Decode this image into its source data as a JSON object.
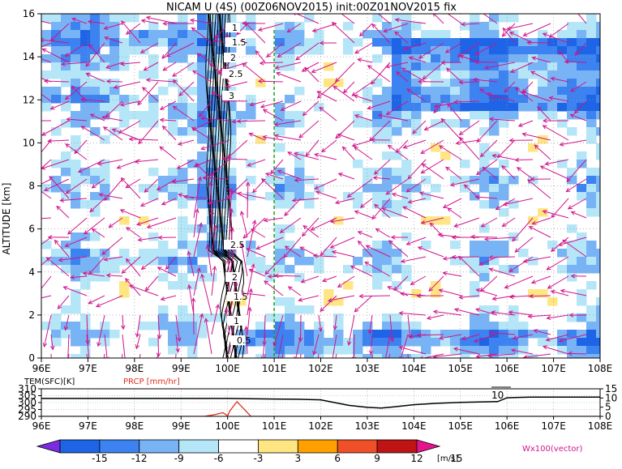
{
  "title": "NICAM U (4S) (00Z06NOV2015) init:00Z01NOV2015 fix",
  "chart_data": [
    {
      "type": "heatmap",
      "ylabel": "ALTITUDE [km]",
      "xlabel": "",
      "xlim": [
        96,
        108
      ],
      "ylim": [
        0,
        16
      ],
      "x_ticks": [
        "96E",
        "97E",
        "98E",
        "99E",
        "100E",
        "101E",
        "102E",
        "103E",
        "104E",
        "105E",
        "106E",
        "107E",
        "108E"
      ],
      "y_ticks": [
        "0",
        "2",
        "4",
        "6",
        "8",
        "10",
        "12",
        "14",
        "16"
      ],
      "grid": true,
      "reference_line_x": 101,
      "contour_labels": [
        "1",
        "1.5",
        "2",
        "2.5",
        "3",
        "2.5",
        "2",
        "1.5",
        "1",
        "0.5"
      ],
      "legend_placement": "bottom",
      "colorbar": {
        "unit": "[m/s]",
        "ticks": [
          "-15",
          "-12",
          "-9",
          "-6",
          "-3",
          "3",
          "6",
          "9",
          "12",
          "15"
        ],
        "colors": [
          "#7a2ce0",
          "#1e64e6",
          "#3c82f0",
          "#78b4f5",
          "#b4e6f8",
          "#ffffff",
          "#ffe682",
          "#ffa000",
          "#f05028",
          "#be1414",
          "#e6148c"
        ]
      },
      "vector_label": "Wx100(vector)",
      "vector_color": "#d0148c"
    },
    {
      "type": "line",
      "xlim": [
        96,
        108
      ],
      "x_ticks": [
        "96E",
        "97E",
        "98E",
        "99E",
        "100E",
        "101E",
        "102E",
        "103E",
        "104E",
        "105E",
        "106E",
        "107E",
        "108E"
      ],
      "left_axis_label": "TEM(SFC)[K]",
      "left_ticks": [
        "290",
        "295",
        "300",
        "305",
        "310"
      ],
      "right_axis_label": "PRCP [mm/hr]",
      "right_ticks": [
        "0",
        "5",
        "10",
        "15"
      ],
      "annotation": "10",
      "series": [
        {
          "name": "TEM(SFC)[K]",
          "color": "#000000",
          "x": [
            96,
            97,
            98,
            99,
            100,
            100.5,
            101,
            101.5,
            102,
            102.3,
            102.6,
            103,
            103.3,
            103.6,
            104,
            104.5,
            105,
            105.5,
            105.8,
            106,
            106.5,
            107,
            108
          ],
          "values": [
            303,
            303,
            303,
            303,
            303,
            302.8,
            302.6,
            302.4,
            302,
            300,
            298,
            296.5,
            296,
            297,
            298.5,
            299.5,
            300.2,
            300.5,
            300.7,
            303.5,
            304,
            304,
            304
          ]
        },
        {
          "name": "PRCP [mm/hr]",
          "color": "#e03020",
          "x": [
            96,
            99,
            99.5,
            99.7,
            99.9,
            100,
            100.05,
            100.2,
            100.35,
            100.5,
            101,
            108
          ],
          "values": [
            0,
            0,
            0,
            0.8,
            2,
            0.3,
            3,
            8,
            4,
            0,
            0,
            0
          ]
        }
      ]
    }
  ]
}
